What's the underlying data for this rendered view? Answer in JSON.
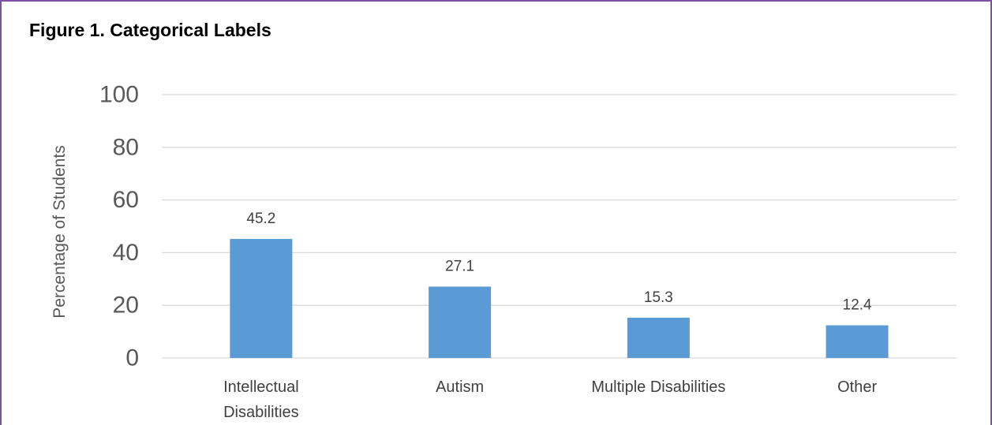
{
  "figure": {
    "title": "Figure 1. Categorical Labels"
  },
  "colors": {
    "bar": "#5b9bd5",
    "grid": "#d9d9d9",
    "frame": "#7d4fa5"
  },
  "chart_data": {
    "type": "bar",
    "title": "Figure 1. Categorical Labels",
    "xlabel": "",
    "ylabel": "Percentage of Students",
    "categories": [
      [
        "Intellectual",
        "Disabilities"
      ],
      [
        "Autism"
      ],
      [
        "Multiple Disabilities"
      ],
      [
        "Other"
      ]
    ],
    "values": [
      45.2,
      27.1,
      15.3,
      12.4
    ],
    "value_labels": [
      "45.2",
      "27.1",
      "15.3",
      "12.4"
    ],
    "ylim": [
      0,
      100
    ],
    "yticks": [
      0,
      20,
      40,
      60,
      80,
      100
    ],
    "grid": true,
    "legend": "none"
  }
}
